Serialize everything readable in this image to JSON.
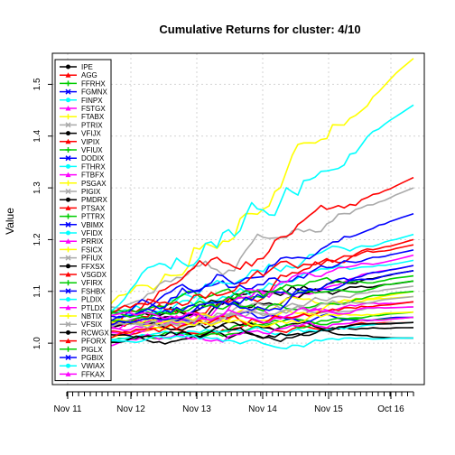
{
  "chart_data": {
    "type": "line",
    "title": "Cumulative Returns for cluster: 4/10",
    "xlabel": "",
    "ylabel": "Value",
    "ylim": [
      0.92,
      1.56
    ],
    "y_ticks": [
      1.0,
      1.1,
      1.2,
      1.3,
      1.4,
      1.5
    ],
    "x_ticks": [
      "Nov 11",
      "Nov 12",
      "Nov 13",
      "Nov 14",
      "Nov 15",
      "Oct 16"
    ],
    "grid": true,
    "legend_position": "top-left",
    "series": [
      {
        "name": "IPE",
        "color": "#000000",
        "final": 1.14
      },
      {
        "name": "AGG",
        "color": "#ff0000",
        "final": 1.04
      },
      {
        "name": "FFRHX",
        "color": "#00cd00",
        "final": 1.06
      },
      {
        "name": "FGMNX",
        "color": "#0000ff",
        "final": 1.05
      },
      {
        "name": "FINPX",
        "color": "#00ffff",
        "final": 1.16
      },
      {
        "name": "FSTGX",
        "color": "#ff00ff",
        "final": 1.08
      },
      {
        "name": "FTABX",
        "color": "#ffff00",
        "final": 1.1
      },
      {
        "name": "PTRIX",
        "color": "#aaaaaa",
        "final": 1.07
      },
      {
        "name": "VFIJX",
        "color": "#000000",
        "final": 1.03
      },
      {
        "name": "VIPIX",
        "color": "#ff0000",
        "final": 1.2
      },
      {
        "name": "VFIUX",
        "color": "#00cd00",
        "final": 1.05
      },
      {
        "name": "DODIX",
        "color": "#0000ff",
        "final": 1.18
      },
      {
        "name": "FTHRX",
        "color": "#00ffff",
        "final": 1.21
      },
      {
        "name": "FTBFX",
        "color": "#ff00ff",
        "final": 1.15
      },
      {
        "name": "PSGAX",
        "color": "#ffff00",
        "final": 1.55
      },
      {
        "name": "PIGIX",
        "color": "#aaaaaa",
        "final": 1.3
      },
      {
        "name": "PMDRX",
        "color": "#000000",
        "final": 1.12
      },
      {
        "name": "PTSAX",
        "color": "#ff0000",
        "final": 1.32
      },
      {
        "name": "PTTRX",
        "color": "#00cd00",
        "final": 1.13
      },
      {
        "name": "VBIMX",
        "color": "#0000ff",
        "final": 1.25
      },
      {
        "name": "VFIDX",
        "color": "#00ffff",
        "final": 1.46
      },
      {
        "name": "PRRIX",
        "color": "#ff00ff",
        "final": 1.17
      },
      {
        "name": "FSICX",
        "color": "#ffff00",
        "final": 1.09
      },
      {
        "name": "PFIUX",
        "color": "#aaaaaa",
        "final": 1.11
      },
      {
        "name": "FFXSX",
        "color": "#000000",
        "final": 1.01
      },
      {
        "name": "VSGDX",
        "color": "#ff0000",
        "final": 1.08
      },
      {
        "name": "VFIRX",
        "color": "#00cd00",
        "final": 1.1
      },
      {
        "name": "FSHBX",
        "color": "#0000ff",
        "final": 1.14
      },
      {
        "name": "PLDIX",
        "color": "#00ffff",
        "final": 1.04
      },
      {
        "name": "PTLDX",
        "color": "#ff00ff",
        "final": 1.05
      },
      {
        "name": "NBTIX",
        "color": "#ffff00",
        "final": 1.06
      },
      {
        "name": "VFSIX",
        "color": "#aaaaaa",
        "final": 1.09
      },
      {
        "name": "RCWGX",
        "color": "#000000",
        "final": 1.04
      },
      {
        "name": "PFORX",
        "color": "#ff0000",
        "final": 1.19
      },
      {
        "name": "PIGLX",
        "color": "#00cd00",
        "final": 1.12
      },
      {
        "name": "PGBIX",
        "color": "#0000ff",
        "final": 1.15
      },
      {
        "name": "VWIAX",
        "color": "#00ffff",
        "final": 1.01
      },
      {
        "name": "FFKAX",
        "color": "#ff00ff",
        "final": 1.07
      }
    ]
  }
}
